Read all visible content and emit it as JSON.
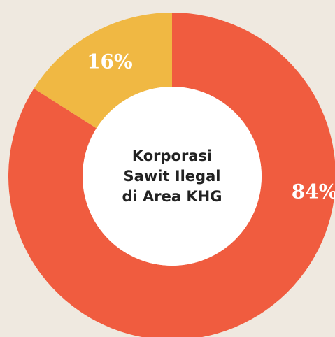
{
  "chart_data": {
    "type": "donut",
    "center_label": "Korporasi Sawit Ilegal di Area KHG",
    "values": [
      84,
      16
    ],
    "value_labels": [
      "84%",
      "16%"
    ],
    "colors": [
      "#f05c3f",
      "#f0b843"
    ]
  }
}
